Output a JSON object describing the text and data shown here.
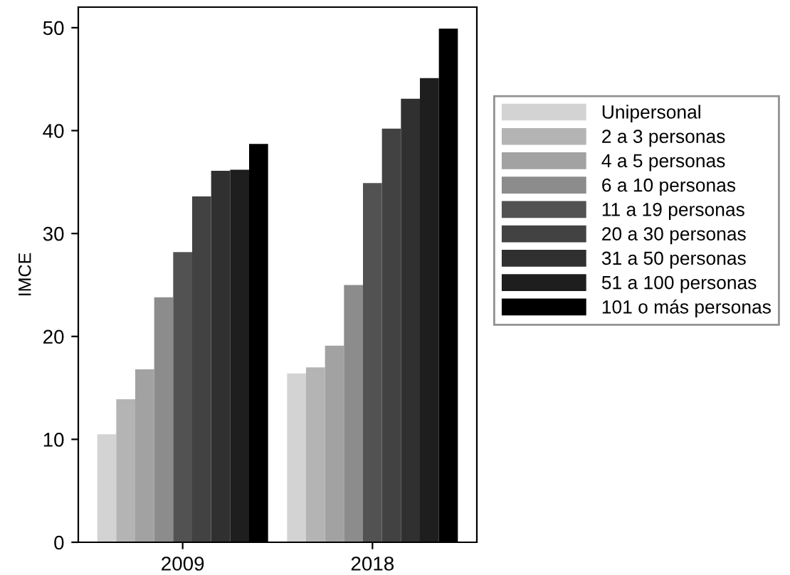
{
  "chart_data": {
    "type": "bar",
    "ylabel": "IMCE",
    "categories": [
      "2009",
      "2018"
    ],
    "series": [
      {
        "name": "Unipersonal",
        "color": "#d3d3d3",
        "values": [
          10.5,
          16.4
        ]
      },
      {
        "name": "2 a 3 personas",
        "color": "#b4b4b4",
        "values": [
          13.9,
          17.0
        ]
      },
      {
        "name": "4 a 5 personas",
        "color": "#a2a2a2",
        "values": [
          16.8,
          19.1
        ]
      },
      {
        "name": "6 a 10 personas",
        "color": "#8c8c8c",
        "values": [
          23.8,
          25.0
        ]
      },
      {
        "name": "11 a 19 personas",
        "color": "#525252",
        "values": [
          28.2,
          34.9
        ]
      },
      {
        "name": "20 a 30 personas",
        "color": "#424242",
        "values": [
          33.6,
          40.2
        ]
      },
      {
        "name": "31 a 50 personas",
        "color": "#303030",
        "values": [
          36.1,
          43.1
        ]
      },
      {
        "name": "51 a 100 personas",
        "color": "#1e1e1e",
        "values": [
          36.2,
          45.1
        ]
      },
      {
        "name": "101 o más personas",
        "color": "#000000",
        "values": [
          38.7,
          49.9
        ]
      }
    ],
    "ylim": [
      0,
      52
    ],
    "yticks": [
      0,
      10,
      20,
      30,
      40,
      50
    ],
    "grid": false,
    "legend": "right"
  }
}
